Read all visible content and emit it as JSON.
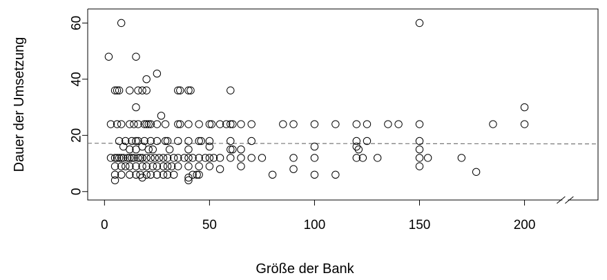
{
  "chart_data": {
    "type": "scatter",
    "title": "",
    "xlabel": "Größe der Bank",
    "ylabel": "Dauer der Umsetzung",
    "xlim": [
      -8,
      235
    ],
    "ylim": [
      -3,
      65
    ],
    "x_ticks": [
      0,
      50,
      100,
      150,
      200
    ],
    "y_ticks": [
      0,
      20,
      40,
      60
    ],
    "x_tick_labels": [
      "0",
      "50",
      "100",
      "150",
      "200"
    ],
    "y_tick_labels": [
      "0",
      "20",
      "40",
      "60"
    ],
    "grid": false,
    "axis_break": {
      "axis": "x",
      "at": 220
    },
    "reference_line": {
      "y": 17.2,
      "slope": -0.001,
      "style": "dashed",
      "color": "#777777"
    },
    "points": [
      [
        2,
        48
      ],
      [
        8,
        60
      ],
      [
        15,
        48
      ],
      [
        25,
        42
      ],
      [
        150,
        60
      ],
      [
        5,
        36
      ],
      [
        6,
        36
      ],
      [
        7,
        36
      ],
      [
        12,
        36
      ],
      [
        16,
        36
      ],
      [
        18,
        36
      ],
      [
        20,
        36
      ],
      [
        35,
        36
      ],
      [
        36,
        36
      ],
      [
        40,
        36
      ],
      [
        41,
        36
      ],
      [
        60,
        36
      ],
      [
        20,
        40
      ],
      [
        27,
        27
      ],
      [
        15,
        30
      ],
      [
        3,
        24
      ],
      [
        6,
        24
      ],
      [
        8,
        24
      ],
      [
        12,
        24
      ],
      [
        14,
        24
      ],
      [
        16,
        24
      ],
      [
        19,
        24
      ],
      [
        20,
        24
      ],
      [
        21,
        24
      ],
      [
        22,
        24
      ],
      [
        25,
        24
      ],
      [
        29,
        24
      ],
      [
        35,
        24
      ],
      [
        36,
        24
      ],
      [
        40,
        24
      ],
      [
        45,
        24
      ],
      [
        50,
        24
      ],
      [
        51,
        24
      ],
      [
        55,
        24
      ],
      [
        58,
        24
      ],
      [
        60,
        24
      ],
      [
        61,
        24
      ],
      [
        65,
        24
      ],
      [
        70,
        24
      ],
      [
        85,
        24
      ],
      [
        90,
        24
      ],
      [
        100,
        24
      ],
      [
        110,
        24
      ],
      [
        120,
        24
      ],
      [
        125,
        24
      ],
      [
        135,
        24
      ],
      [
        140,
        24
      ],
      [
        150,
        24
      ],
      [
        185,
        24
      ],
      [
        200,
        24
      ],
      [
        200,
        30
      ],
      [
        7,
        18
      ],
      [
        10,
        18
      ],
      [
        13,
        18
      ],
      [
        15,
        18
      ],
      [
        16,
        18
      ],
      [
        19,
        18
      ],
      [
        22,
        18
      ],
      [
        25,
        18
      ],
      [
        29,
        18
      ],
      [
        30,
        18
      ],
      [
        35,
        18
      ],
      [
        40,
        18
      ],
      [
        45,
        18
      ],
      [
        46,
        18
      ],
      [
        50,
        18
      ],
      [
        60,
        18
      ],
      [
        70,
        18
      ],
      [
        120,
        18
      ],
      [
        125,
        18
      ],
      [
        150,
        18
      ],
      [
        9,
        16
      ],
      [
        12,
        15
      ],
      [
        15,
        15
      ],
      [
        18,
        16
      ],
      [
        21,
        15
      ],
      [
        23,
        15
      ],
      [
        31,
        15
      ],
      [
        40,
        15
      ],
      [
        50,
        16
      ],
      [
        60,
        15
      ],
      [
        61,
        15
      ],
      [
        65,
        15
      ],
      [
        100,
        16
      ],
      [
        120,
        16
      ],
      [
        121,
        15
      ],
      [
        150,
        15
      ],
      [
        3,
        12
      ],
      [
        5,
        12
      ],
      [
        6,
        12
      ],
      [
        7,
        12
      ],
      [
        8,
        12
      ],
      [
        9,
        12
      ],
      [
        11,
        12
      ],
      [
        12,
        12
      ],
      [
        13,
        12
      ],
      [
        14,
        12
      ],
      [
        16,
        12
      ],
      [
        17,
        12
      ],
      [
        18,
        12
      ],
      [
        20,
        12
      ],
      [
        22,
        12
      ],
      [
        24,
        12
      ],
      [
        26,
        12
      ],
      [
        28,
        12
      ],
      [
        30,
        12
      ],
      [
        33,
        12
      ],
      [
        35,
        12
      ],
      [
        38,
        12
      ],
      [
        40,
        12
      ],
      [
        42,
        12
      ],
      [
        45,
        12
      ],
      [
        48,
        12
      ],
      [
        50,
        12
      ],
      [
        52,
        12
      ],
      [
        55,
        12
      ],
      [
        60,
        12
      ],
      [
        65,
        12
      ],
      [
        70,
        12
      ],
      [
        75,
        12
      ],
      [
        90,
        12
      ],
      [
        100,
        12
      ],
      [
        120,
        12
      ],
      [
        123,
        12
      ],
      [
        130,
        12
      ],
      [
        150,
        12
      ],
      [
        154,
        12
      ],
      [
        170,
        12
      ],
      [
        5,
        9
      ],
      [
        8,
        9
      ],
      [
        10,
        9
      ],
      [
        12,
        9
      ],
      [
        15,
        9
      ],
      [
        18,
        9
      ],
      [
        20,
        9
      ],
      [
        23,
        9
      ],
      [
        25,
        9
      ],
      [
        28,
        9
      ],
      [
        30,
        9
      ],
      [
        32,
        9
      ],
      [
        35,
        9
      ],
      [
        40,
        9
      ],
      [
        45,
        9
      ],
      [
        50,
        9
      ],
      [
        55,
        8
      ],
      [
        65,
        9
      ],
      [
        90,
        8
      ],
      [
        150,
        9
      ],
      [
        5,
        6
      ],
      [
        8,
        6
      ],
      [
        12,
        6
      ],
      [
        15,
        6
      ],
      [
        17,
        6
      ],
      [
        18,
        5
      ],
      [
        20,
        6
      ],
      [
        22,
        6
      ],
      [
        25,
        6
      ],
      [
        28,
        6
      ],
      [
        30,
        6
      ],
      [
        33,
        6
      ],
      [
        40,
        5
      ],
      [
        42,
        6
      ],
      [
        44,
        6
      ],
      [
        45,
        6
      ],
      [
        80,
        6
      ],
      [
        100,
        6
      ],
      [
        110,
        6
      ],
      [
        177,
        7
      ],
      [
        5,
        4
      ],
      [
        40,
        4
      ]
    ]
  }
}
